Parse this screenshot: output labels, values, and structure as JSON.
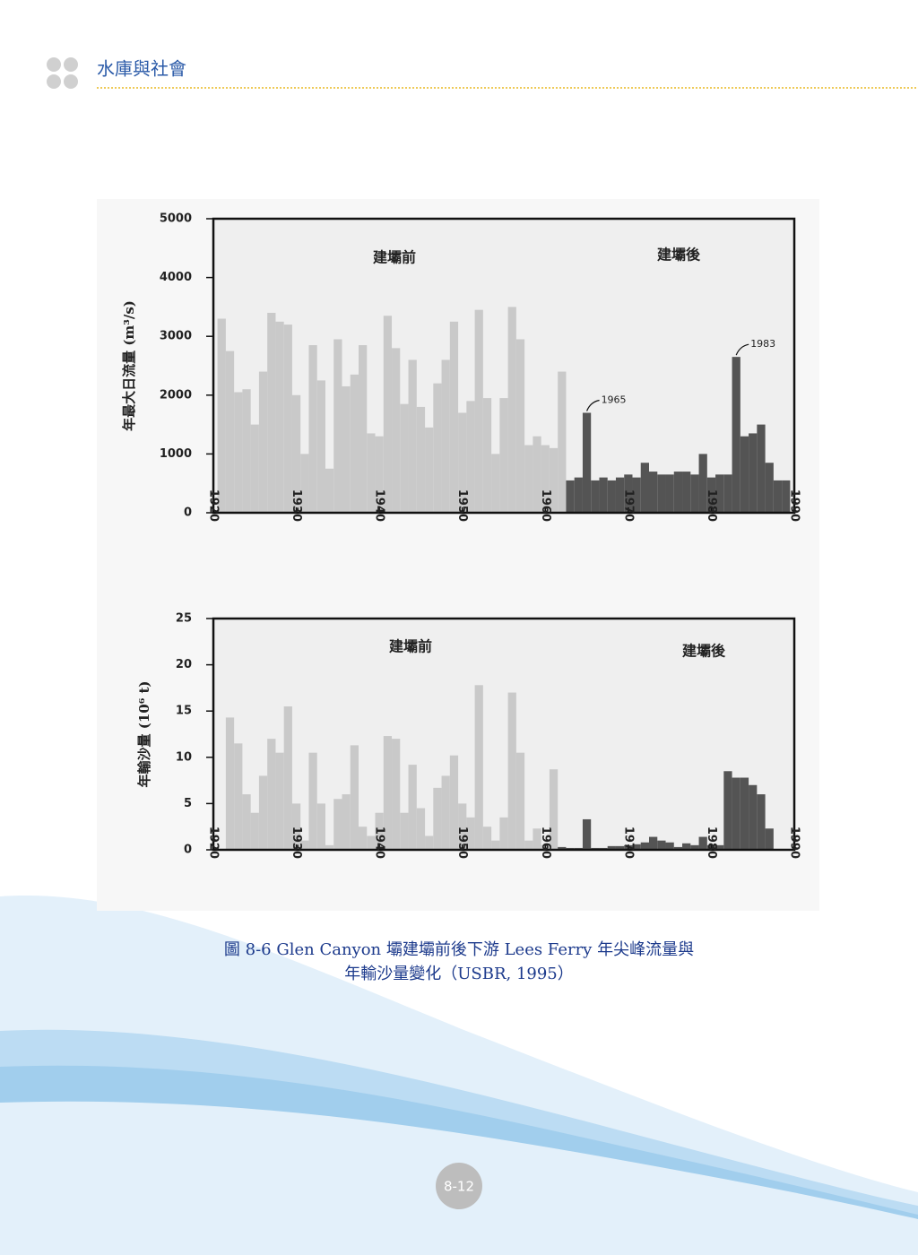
{
  "header": {
    "title": "水庫與社會"
  },
  "chart_data": [
    {
      "type": "bar",
      "ylabel": "年最大日流量 (m³/s)",
      "x": [
        1921,
        1922,
        1923,
        1924,
        1925,
        1926,
        1927,
        1928,
        1929,
        1930,
        1931,
        1932,
        1933,
        1934,
        1935,
        1936,
        1937,
        1938,
        1939,
        1940,
        1941,
        1942,
        1943,
        1944,
        1945,
        1946,
        1947,
        1948,
        1949,
        1950,
        1951,
        1952,
        1953,
        1954,
        1955,
        1956,
        1957,
        1958,
        1959,
        1960,
        1961,
        1962,
        1963,
        1964,
        1965,
        1966,
        1967,
        1968,
        1969,
        1970,
        1971,
        1972,
        1973,
        1974,
        1975,
        1976,
        1977,
        1978,
        1979,
        1980,
        1981,
        1982,
        1983,
        1984,
        1985,
        1986,
        1987,
        1988,
        1989
      ],
      "series": [
        {
          "name": "建壩前",
          "color": "#c9c9c9",
          "values": [
            3300,
            2750,
            2050,
            2100,
            1500,
            2400,
            3400,
            3250,
            3200,
            2000,
            1000,
            2850,
            2250,
            750,
            2950,
            2150,
            2350,
            2850,
            1350,
            1300,
            3350,
            2800,
            1850,
            2600,
            1800,
            1450,
            2200,
            2600,
            3250,
            1700,
            1900,
            3450,
            1950,
            1000,
            1950,
            3500,
            2950,
            1150,
            1300,
            1150,
            1100,
            2400,
            null,
            null,
            null,
            null,
            null,
            null,
            null,
            null,
            null,
            null,
            null,
            null,
            null,
            null,
            null,
            null,
            null,
            null,
            null,
            null,
            null,
            null,
            null,
            null,
            null,
            null,
            null
          ]
        },
        {
          "name": "建壩後",
          "color": "#545454",
          "values": [
            null,
            null,
            null,
            null,
            null,
            null,
            null,
            null,
            null,
            null,
            null,
            null,
            null,
            null,
            null,
            null,
            null,
            null,
            null,
            null,
            null,
            null,
            null,
            null,
            null,
            null,
            null,
            null,
            null,
            null,
            null,
            null,
            null,
            null,
            null,
            null,
            null,
            null,
            null,
            null,
            null,
            null,
            550,
            600,
            1700,
            550,
            600,
            550,
            600,
            650,
            600,
            850,
            700,
            650,
            650,
            700,
            700,
            650,
            1000,
            600,
            650,
            650,
            2650,
            1300,
            1350,
            1500,
            850,
            550,
            550
          ]
        }
      ],
      "xlim": [
        1920,
        1990
      ],
      "xticks": [
        1920,
        1930,
        1940,
        1950,
        1960,
        1970,
        1980,
        1990
      ],
      "ylim": [
        0,
        5000
      ],
      "yticks": [
        0,
        1000,
        2000,
        3000,
        4000,
        5000
      ],
      "annotations": [
        {
          "text": "1965",
          "x": 1965
        },
        {
          "text": "1983",
          "x": 1983
        }
      ]
    },
    {
      "type": "bar",
      "ylabel": "年輸沙量 (10⁶ t)",
      "x": [
        1922,
        1923,
        1924,
        1925,
        1926,
        1927,
        1928,
        1929,
        1930,
        1931,
        1932,
        1933,
        1934,
        1935,
        1936,
        1937,
        1938,
        1939,
        1940,
        1941,
        1942,
        1943,
        1944,
        1945,
        1946,
        1947,
        1948,
        1949,
        1950,
        1951,
        1952,
        1953,
        1954,
        1955,
        1956,
        1957,
        1958,
        1959,
        1960,
        1961,
        1962,
        1963,
        1964,
        1965,
        1966,
        1967,
        1968,
        1969,
        1970,
        1971,
        1972,
        1973,
        1974,
        1975,
        1976,
        1977,
        1978,
        1979,
        1980,
        1981,
        1982,
        1983,
        1984,
        1985,
        1986,
        1987
      ],
      "series": [
        {
          "name": "建壩前",
          "color": "#c9c9c9",
          "values": [
            14.3,
            11.5,
            6,
            4,
            8,
            12,
            10.5,
            15.5,
            5,
            1,
            10.5,
            5,
            0.5,
            5.5,
            6,
            11.3,
            2.5,
            1.5,
            4,
            12.3,
            12,
            4,
            9.2,
            4.5,
            1.5,
            6.7,
            8,
            10.2,
            5,
            3.5,
            17.8,
            2.5,
            1,
            3.5,
            17,
            10.5,
            1,
            2.3,
            0.5,
            8.7,
            null,
            null,
            null,
            null,
            null,
            null,
            null,
            null,
            null,
            null,
            null,
            null,
            null,
            null,
            null,
            null,
            null,
            null,
            null,
            null,
            null,
            null,
            null,
            null,
            null,
            null
          ]
        },
        {
          "name": "建壩後",
          "color": "#545454",
          "values": [
            null,
            null,
            null,
            null,
            null,
            null,
            null,
            null,
            null,
            null,
            null,
            null,
            null,
            null,
            null,
            null,
            null,
            null,
            null,
            null,
            null,
            null,
            null,
            null,
            null,
            null,
            null,
            null,
            null,
            null,
            null,
            null,
            null,
            null,
            null,
            null,
            null,
            null,
            null,
            null,
            0.3,
            0.2,
            0.2,
            3.3,
            0.2,
            0.2,
            0.4,
            0.4,
            0.5,
            0.6,
            0.8,
            1.4,
            1,
            0.8,
            0.3,
            0.7,
            0.5,
            1.4,
            0.5,
            0.5,
            8.5,
            7.8,
            7.8,
            7,
            6,
            2.3
          ]
        }
      ],
      "xlim": [
        1920,
        1990
      ],
      "xticks": [
        1920,
        1930,
        1940,
        1950,
        1960,
        1970,
        1980,
        1990
      ],
      "ylim": [
        0,
        25
      ],
      "yticks": [
        0,
        5,
        10,
        15,
        20,
        25
      ]
    }
  ],
  "caption": {
    "lines": [
      "圖 8-6  Glen Canyon 壩建壩前後下游 Lees Ferry 年尖峰流量與",
      "年輸沙量變化（USBR, 1995）"
    ]
  },
  "page_number": "8-12"
}
